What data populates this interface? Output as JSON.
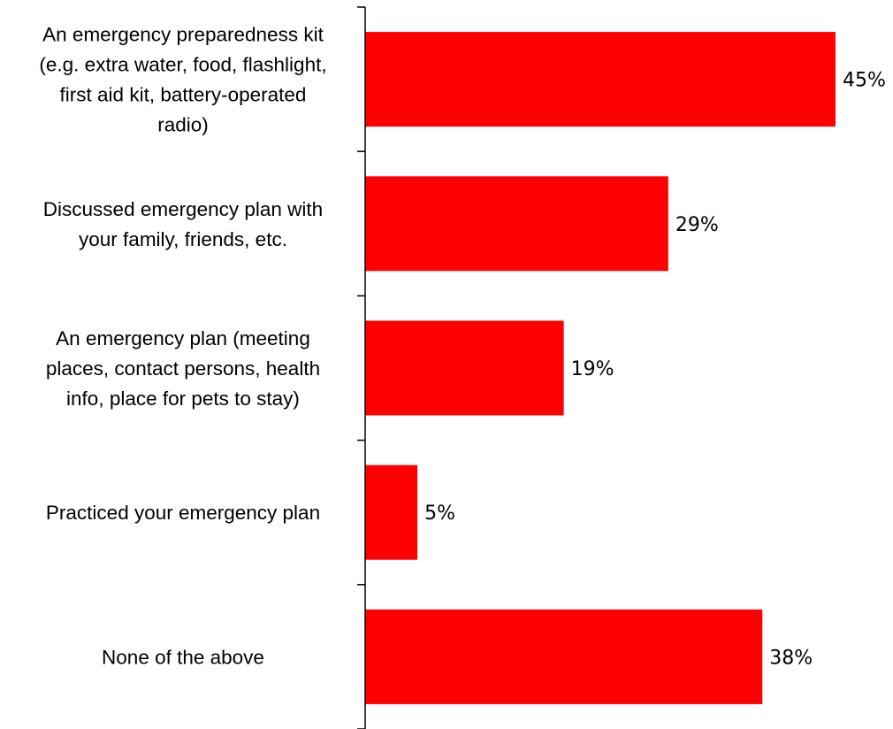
{
  "chart_data": {
    "type": "bar",
    "orientation": "horizontal",
    "title": "",
    "xlabel": "",
    "ylabel": "",
    "xlim": [
      0,
      45
    ],
    "grid": false,
    "legend": "none",
    "value_suffix": "%",
    "bar_color": "#ff0000",
    "categories": [
      "An emergency preparedness kit (e.g. extra water, food, flashlight, first aid kit, battery-operated radio)",
      "Discussed emergency plan with your family, friends, etc.",
      "An emergency plan (meeting places, contact persons, health info, place for pets to stay)",
      "Practiced your emergency plan",
      "None of the above"
    ],
    "category_label_lines": [
      [
        "An emergency preparedness kit",
        "(e.g. extra water, food, flashlight,",
        "first aid kit, battery-operated",
        "radio)"
      ],
      [
        "Discussed emergency plan with",
        "your family, friends, etc."
      ],
      [
        "An emergency plan (meeting",
        "places, contact persons, health",
        "info, place for pets to stay)"
      ],
      [
        "Practiced your emergency plan"
      ],
      [
        "None of the above"
      ]
    ],
    "values": [
      45,
      29,
      19,
      5,
      38
    ],
    "value_labels": [
      "45%",
      "29%",
      "19%",
      "5%",
      "38%"
    ]
  }
}
